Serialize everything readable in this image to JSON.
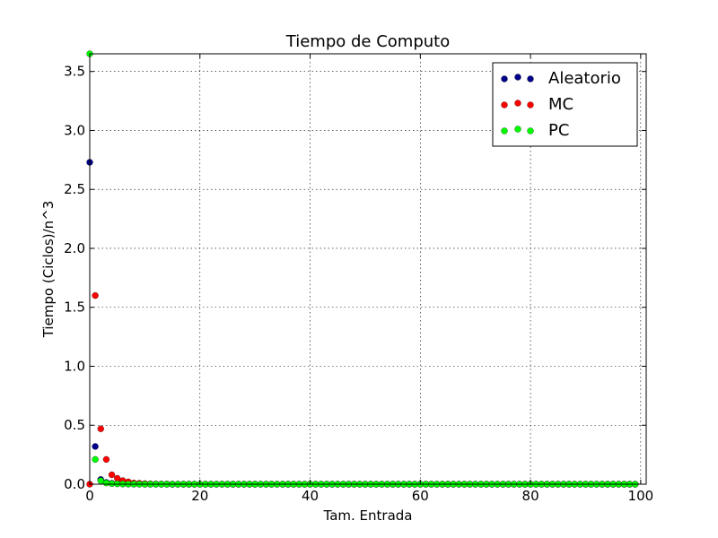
{
  "chart_data": {
    "type": "scatter",
    "title": "Tiempo de Computo",
    "xlabel": "Tam. Entrada",
    "ylabel": "Tiempo (Ciclos)/n^3",
    "xlim": [
      0,
      101
    ],
    "ylim": [
      0,
      3.65
    ],
    "xticks": [
      0,
      20,
      40,
      60,
      80,
      100
    ],
    "xtick_labels": [
      "0",
      "20",
      "40",
      "60",
      "80",
      "100"
    ],
    "yticks": [
      0.0,
      0.5,
      1.0,
      1.5,
      2.0,
      2.5,
      3.0,
      3.5
    ],
    "ytick_labels": [
      "0.0",
      "0.5",
      "1.0",
      "1.5",
      "2.0",
      "2.5",
      "3.0",
      "3.5"
    ],
    "grid": true,
    "legend_position": "top-right",
    "series": [
      {
        "name": "Aleatorio",
        "color": "#00008b",
        "x": [
          0,
          1,
          2,
          3,
          4,
          5,
          6,
          7,
          8,
          9,
          10,
          11,
          12,
          13,
          14,
          15,
          16,
          17,
          18,
          19,
          20,
          21,
          22,
          23,
          24,
          25,
          26,
          27,
          28,
          29,
          30,
          31,
          32,
          33,
          34,
          35,
          36,
          37,
          38,
          39,
          40,
          41,
          42,
          43,
          44,
          45,
          46,
          47,
          48,
          49,
          50,
          51,
          52,
          53,
          54,
          55,
          56,
          57,
          58,
          59,
          60,
          61,
          62,
          63,
          64,
          65,
          66,
          67,
          68,
          69,
          70,
          71,
          72,
          73,
          74,
          75,
          76,
          77,
          78,
          79,
          80,
          81,
          82,
          83,
          84,
          85,
          86,
          87,
          88,
          89,
          90,
          91,
          92,
          93,
          94,
          95,
          96,
          97,
          98,
          99
        ],
        "y": [
          2.73,
          0.32,
          0.04,
          0.015,
          0.008,
          0.005,
          0.003,
          0.002,
          0.001,
          0.001,
          0,
          0,
          0,
          0,
          0,
          0,
          0,
          0,
          0,
          0,
          0,
          0,
          0,
          0,
          0,
          0,
          0,
          0,
          0,
          0,
          0,
          0,
          0,
          0,
          0,
          0,
          0,
          0,
          0,
          0,
          0,
          0,
          0,
          0,
          0,
          0,
          0,
          0,
          0,
          0,
          0,
          0,
          0,
          0,
          0,
          0,
          0,
          0,
          0,
          0,
          0,
          0,
          0,
          0,
          0,
          0,
          0,
          0,
          0,
          0,
          0,
          0,
          0,
          0,
          0,
          0,
          0,
          0,
          0,
          0,
          0,
          0,
          0,
          0,
          0,
          0,
          0,
          0,
          0,
          0,
          0,
          0,
          0,
          0,
          0,
          0,
          0,
          0,
          0,
          0
        ]
      },
      {
        "name": "MC",
        "color": "#ff0000",
        "x": [
          0,
          1,
          2,
          3,
          4,
          5,
          6,
          7,
          8,
          9,
          10,
          11,
          12,
          13,
          14,
          15,
          16,
          17,
          18,
          19,
          20,
          21,
          22,
          23,
          24,
          25,
          26,
          27,
          28,
          29,
          30,
          31,
          32,
          33,
          34,
          35,
          36,
          37,
          38,
          39,
          40,
          41,
          42,
          43,
          44,
          45,
          46,
          47,
          48,
          49,
          50,
          51,
          52,
          53,
          54,
          55,
          56,
          57,
          58,
          59,
          60,
          61,
          62,
          63,
          64,
          65,
          66,
          67,
          68,
          69,
          70,
          71,
          72,
          73,
          74,
          75,
          76,
          77,
          78,
          79,
          80,
          81,
          82,
          83,
          84,
          85,
          86,
          87,
          88,
          89,
          90,
          91,
          92,
          93,
          94,
          95,
          96,
          97,
          98,
          99
        ],
        "y": [
          0,
          1.6,
          0.47,
          0.21,
          0.08,
          0.05,
          0.03,
          0.02,
          0.01,
          0.008,
          0.005,
          0.003,
          0.002,
          0.001,
          0.001,
          0,
          0,
          0,
          0,
          0,
          0,
          0,
          0,
          0,
          0,
          0,
          0,
          0,
          0,
          0,
          0,
          0,
          0,
          0,
          0,
          0,
          0,
          0,
          0,
          0,
          0,
          0,
          0,
          0,
          0,
          0,
          0,
          0,
          0,
          0,
          0,
          0,
          0,
          0,
          0,
          0,
          0,
          0,
          0,
          0,
          0,
          0,
          0,
          0,
          0,
          0,
          0,
          0,
          0,
          0,
          0,
          0,
          0,
          0,
          0,
          0,
          0,
          0,
          0,
          0,
          0,
          0,
          0,
          0,
          0,
          0,
          0,
          0,
          0,
          0,
          0,
          0,
          0,
          0,
          0,
          0,
          0,
          0,
          0,
          0
        ]
      },
      {
        "name": "PC",
        "color": "#00ff00",
        "x": [
          0,
          1,
          2,
          3,
          4,
          5,
          6,
          7,
          8,
          9,
          10,
          11,
          12,
          13,
          14,
          15,
          16,
          17,
          18,
          19,
          20,
          21,
          22,
          23,
          24,
          25,
          26,
          27,
          28,
          29,
          30,
          31,
          32,
          33,
          34,
          35,
          36,
          37,
          38,
          39,
          40,
          41,
          42,
          43,
          44,
          45,
          46,
          47,
          48,
          49,
          50,
          51,
          52,
          53,
          54,
          55,
          56,
          57,
          58,
          59,
          60,
          61,
          62,
          63,
          64,
          65,
          66,
          67,
          68,
          69,
          70,
          71,
          72,
          73,
          74,
          75,
          76,
          77,
          78,
          79,
          80,
          81,
          82,
          83,
          84,
          85,
          86,
          87,
          88,
          89,
          90,
          91,
          92,
          93,
          94,
          95,
          96,
          97,
          98,
          99
        ],
        "y": [
          3.65,
          0.21,
          0.03,
          0.01,
          0.005,
          0.003,
          0.002,
          0.001,
          0.001,
          0,
          0,
          0,
          0,
          0,
          0,
          0,
          0,
          0,
          0,
          0,
          0,
          0,
          0,
          0,
          0,
          0,
          0,
          0,
          0,
          0,
          0,
          0,
          0,
          0,
          0,
          0,
          0,
          0,
          0,
          0,
          0,
          0,
          0,
          0,
          0,
          0,
          0,
          0,
          0,
          0,
          0,
          0,
          0,
          0,
          0,
          0,
          0,
          0,
          0,
          0,
          0,
          0,
          0,
          0,
          0,
          0,
          0,
          0,
          0,
          0,
          0,
          0,
          0,
          0,
          0,
          0,
          0,
          0,
          0,
          0,
          0,
          0,
          0,
          0,
          0,
          0,
          0,
          0,
          0,
          0,
          0,
          0,
          0,
          0,
          0,
          0,
          0,
          0,
          0,
          0
        ]
      }
    ]
  }
}
